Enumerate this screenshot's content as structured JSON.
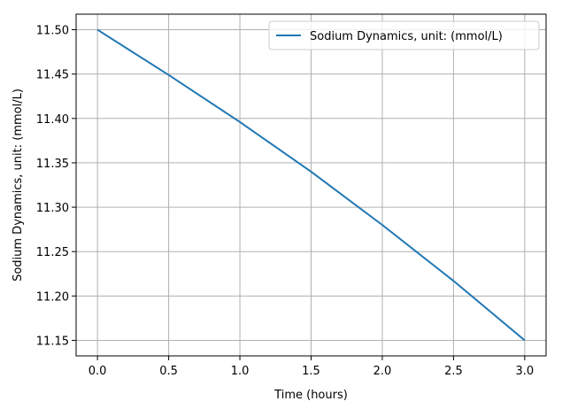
{
  "chart_data": {
    "type": "line",
    "title": "",
    "xlabel": "Time (hours)",
    "ylabel": "Sodium Dynamics, unit: (mmol/L)",
    "xlim": [
      -0.15,
      3.15
    ],
    "ylim": [
      11.1325,
      11.5175
    ],
    "xticks": [
      0.0,
      0.5,
      1.0,
      1.5,
      2.0,
      2.5,
      3.0
    ],
    "xtick_labels": [
      "0.0",
      "0.5",
      "1.0",
      "1.5",
      "2.0",
      "2.5",
      "3.0"
    ],
    "yticks": [
      11.15,
      11.2,
      11.25,
      11.3,
      11.35,
      11.4,
      11.45,
      11.5
    ],
    "ytick_labels": [
      "11.15",
      "11.20",
      "11.25",
      "11.30",
      "11.35",
      "11.40",
      "11.45",
      "11.50"
    ],
    "grid": true,
    "legend_position": "top-right",
    "series": [
      {
        "name": "Sodium Dynamics, unit: (mmol/L)",
        "color": "#1f77b4",
        "x": [
          0.0,
          0.5,
          1.0,
          1.5,
          2.0,
          2.5,
          3.0
        ],
        "y": [
          11.5,
          11.449,
          11.396,
          11.34,
          11.28,
          11.217,
          11.15
        ]
      }
    ]
  }
}
